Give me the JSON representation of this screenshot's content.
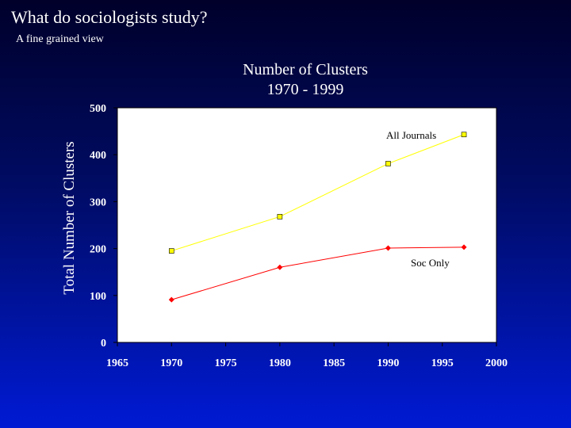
{
  "slide": {
    "title": "What do sociologists study?",
    "subtitle": "A fine grained view"
  },
  "chart_data": {
    "type": "line",
    "title": [
      "Number of Clusters",
      "1970 - 1999"
    ],
    "ylabel": "Total Number of Clusters",
    "xlabel": "",
    "xlim": [
      1965,
      2000
    ],
    "ylim": [
      0,
      500
    ],
    "x_ticks": [
      1965,
      1970,
      1975,
      1980,
      1985,
      1990,
      1995,
      2000
    ],
    "y_ticks": [
      0,
      100,
      200,
      300,
      400,
      500
    ],
    "grid": false,
    "legend": "labels beside series",
    "plot_background": "#ffffff",
    "series": [
      {
        "name": "All Journals",
        "color": "#ffff00",
        "marker": "square",
        "x": [
          1970,
          1980,
          1990,
          1997
        ],
        "y": [
          195,
          268,
          381,
          443
        ]
      },
      {
        "name": "Soc Only",
        "color": "#ff0000",
        "marker": "diamond",
        "x": [
          1970,
          1980,
          1990,
          1997
        ],
        "y": [
          91,
          160,
          201,
          203
        ]
      }
    ]
  }
}
